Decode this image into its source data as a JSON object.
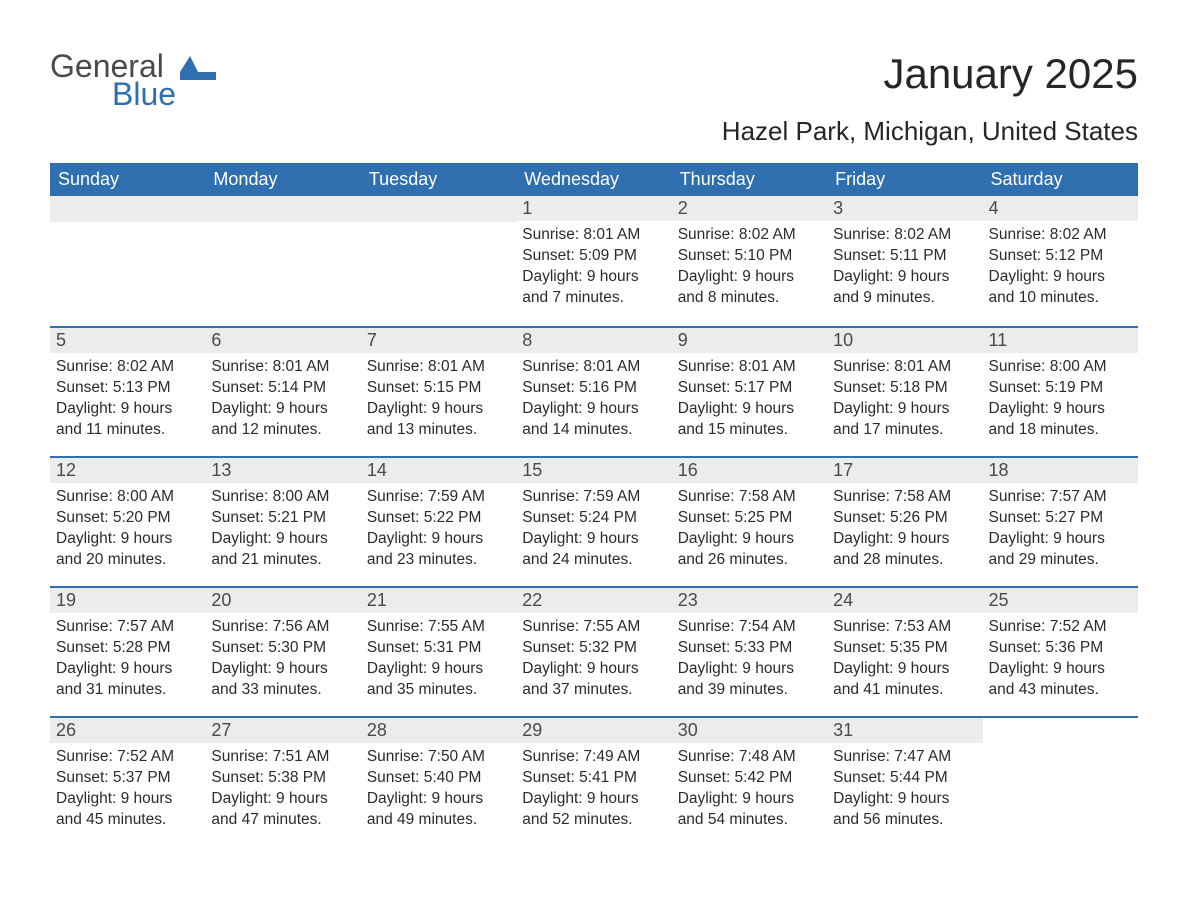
{
  "logo": {
    "word1": "General",
    "word2": "Blue",
    "flag_color": "#2f6fb0",
    "text_gray": "#4a4a4a"
  },
  "title": "January 2025",
  "location": "Hazel Park, Michigan, United States",
  "colors": {
    "header_bg": "#2f6fb0",
    "header_text": "#ffffff",
    "daynum_bg": "#ececec",
    "border": "#2f6fb0",
    "body_text": "#2b2b2b",
    "page_bg": "#ffffff"
  },
  "weekdays": [
    "Sunday",
    "Monday",
    "Tuesday",
    "Wednesday",
    "Thursday",
    "Friday",
    "Saturday"
  ],
  "weeks": [
    [
      null,
      null,
      null,
      {
        "n": "1",
        "sr": "Sunrise: 8:01 AM",
        "ss": "Sunset: 5:09 PM",
        "d1": "Daylight: 9 hours",
        "d2": "and 7 minutes."
      },
      {
        "n": "2",
        "sr": "Sunrise: 8:02 AM",
        "ss": "Sunset: 5:10 PM",
        "d1": "Daylight: 9 hours",
        "d2": "and 8 minutes."
      },
      {
        "n": "3",
        "sr": "Sunrise: 8:02 AM",
        "ss": "Sunset: 5:11 PM",
        "d1": "Daylight: 9 hours",
        "d2": "and 9 minutes."
      },
      {
        "n": "4",
        "sr": "Sunrise: 8:02 AM",
        "ss": "Sunset: 5:12 PM",
        "d1": "Daylight: 9 hours",
        "d2": "and 10 minutes."
      }
    ],
    [
      {
        "n": "5",
        "sr": "Sunrise: 8:02 AM",
        "ss": "Sunset: 5:13 PM",
        "d1": "Daylight: 9 hours",
        "d2": "and 11 minutes."
      },
      {
        "n": "6",
        "sr": "Sunrise: 8:01 AM",
        "ss": "Sunset: 5:14 PM",
        "d1": "Daylight: 9 hours",
        "d2": "and 12 minutes."
      },
      {
        "n": "7",
        "sr": "Sunrise: 8:01 AM",
        "ss": "Sunset: 5:15 PM",
        "d1": "Daylight: 9 hours",
        "d2": "and 13 minutes."
      },
      {
        "n": "8",
        "sr": "Sunrise: 8:01 AM",
        "ss": "Sunset: 5:16 PM",
        "d1": "Daylight: 9 hours",
        "d2": "and 14 minutes."
      },
      {
        "n": "9",
        "sr": "Sunrise: 8:01 AM",
        "ss": "Sunset: 5:17 PM",
        "d1": "Daylight: 9 hours",
        "d2": "and 15 minutes."
      },
      {
        "n": "10",
        "sr": "Sunrise: 8:01 AM",
        "ss": "Sunset: 5:18 PM",
        "d1": "Daylight: 9 hours",
        "d2": "and 17 minutes."
      },
      {
        "n": "11",
        "sr": "Sunrise: 8:00 AM",
        "ss": "Sunset: 5:19 PM",
        "d1": "Daylight: 9 hours",
        "d2": "and 18 minutes."
      }
    ],
    [
      {
        "n": "12",
        "sr": "Sunrise: 8:00 AM",
        "ss": "Sunset: 5:20 PM",
        "d1": "Daylight: 9 hours",
        "d2": "and 20 minutes."
      },
      {
        "n": "13",
        "sr": "Sunrise: 8:00 AM",
        "ss": "Sunset: 5:21 PM",
        "d1": "Daylight: 9 hours",
        "d2": "and 21 minutes."
      },
      {
        "n": "14",
        "sr": "Sunrise: 7:59 AM",
        "ss": "Sunset: 5:22 PM",
        "d1": "Daylight: 9 hours",
        "d2": "and 23 minutes."
      },
      {
        "n": "15",
        "sr": "Sunrise: 7:59 AM",
        "ss": "Sunset: 5:24 PM",
        "d1": "Daylight: 9 hours",
        "d2": "and 24 minutes."
      },
      {
        "n": "16",
        "sr": "Sunrise: 7:58 AM",
        "ss": "Sunset: 5:25 PM",
        "d1": "Daylight: 9 hours",
        "d2": "and 26 minutes."
      },
      {
        "n": "17",
        "sr": "Sunrise: 7:58 AM",
        "ss": "Sunset: 5:26 PM",
        "d1": "Daylight: 9 hours",
        "d2": "and 28 minutes."
      },
      {
        "n": "18",
        "sr": "Sunrise: 7:57 AM",
        "ss": "Sunset: 5:27 PM",
        "d1": "Daylight: 9 hours",
        "d2": "and 29 minutes."
      }
    ],
    [
      {
        "n": "19",
        "sr": "Sunrise: 7:57 AM",
        "ss": "Sunset: 5:28 PM",
        "d1": "Daylight: 9 hours",
        "d2": "and 31 minutes."
      },
      {
        "n": "20",
        "sr": "Sunrise: 7:56 AM",
        "ss": "Sunset: 5:30 PM",
        "d1": "Daylight: 9 hours",
        "d2": "and 33 minutes."
      },
      {
        "n": "21",
        "sr": "Sunrise: 7:55 AM",
        "ss": "Sunset: 5:31 PM",
        "d1": "Daylight: 9 hours",
        "d2": "and 35 minutes."
      },
      {
        "n": "22",
        "sr": "Sunrise: 7:55 AM",
        "ss": "Sunset: 5:32 PM",
        "d1": "Daylight: 9 hours",
        "d2": "and 37 minutes."
      },
      {
        "n": "23",
        "sr": "Sunrise: 7:54 AM",
        "ss": "Sunset: 5:33 PM",
        "d1": "Daylight: 9 hours",
        "d2": "and 39 minutes."
      },
      {
        "n": "24",
        "sr": "Sunrise: 7:53 AM",
        "ss": "Sunset: 5:35 PM",
        "d1": "Daylight: 9 hours",
        "d2": "and 41 minutes."
      },
      {
        "n": "25",
        "sr": "Sunrise: 7:52 AM",
        "ss": "Sunset: 5:36 PM",
        "d1": "Daylight: 9 hours",
        "d2": "and 43 minutes."
      }
    ],
    [
      {
        "n": "26",
        "sr": "Sunrise: 7:52 AM",
        "ss": "Sunset: 5:37 PM",
        "d1": "Daylight: 9 hours",
        "d2": "and 45 minutes."
      },
      {
        "n": "27",
        "sr": "Sunrise: 7:51 AM",
        "ss": "Sunset: 5:38 PM",
        "d1": "Daylight: 9 hours",
        "d2": "and 47 minutes."
      },
      {
        "n": "28",
        "sr": "Sunrise: 7:50 AM",
        "ss": "Sunset: 5:40 PM",
        "d1": "Daylight: 9 hours",
        "d2": "and 49 minutes."
      },
      {
        "n": "29",
        "sr": "Sunrise: 7:49 AM",
        "ss": "Sunset: 5:41 PM",
        "d1": "Daylight: 9 hours",
        "d2": "and 52 minutes."
      },
      {
        "n": "30",
        "sr": "Sunrise: 7:48 AM",
        "ss": "Sunset: 5:42 PM",
        "d1": "Daylight: 9 hours",
        "d2": "and 54 minutes."
      },
      {
        "n": "31",
        "sr": "Sunrise: 7:47 AM",
        "ss": "Sunset: 5:44 PM",
        "d1": "Daylight: 9 hours",
        "d2": "and 56 minutes."
      },
      null
    ]
  ]
}
